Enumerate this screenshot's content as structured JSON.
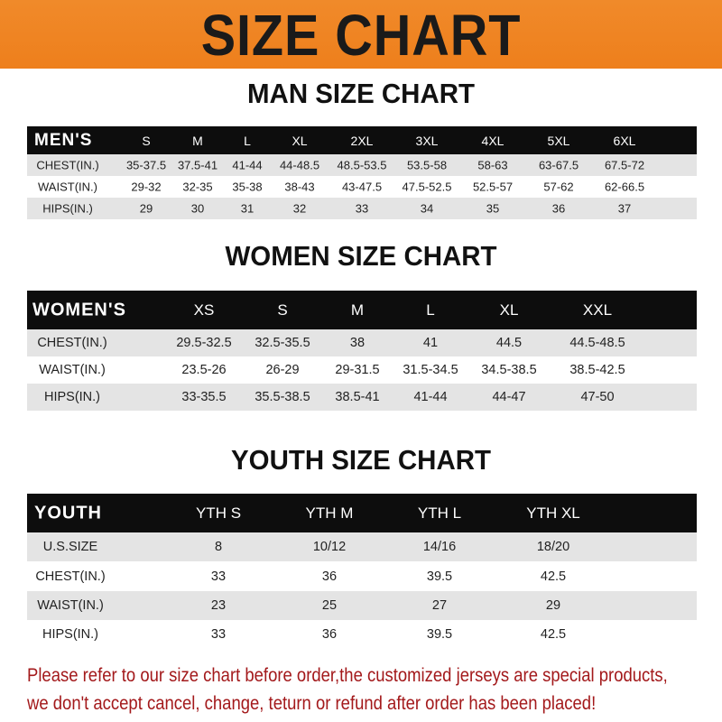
{
  "banner": {
    "title": "SIZE CHART",
    "color": "#ee7f1c"
  },
  "men": {
    "title": "MAN SIZE CHART",
    "header": [
      "MEN'S",
      "S",
      "M",
      "L",
      "XL",
      "2XL",
      "3XL",
      "4XL",
      "5XL",
      "6XL"
    ],
    "rows": [
      [
        "CHEST(IN.)",
        "35-37.5",
        "37.5-41",
        "41-44",
        "44-48.5",
        "48.5-53.5",
        "53.5-58",
        "58-63",
        "63-67.5",
        "67.5-72"
      ],
      [
        "WAIST(IN.)",
        "29-32",
        "32-35",
        "35-38",
        "38-43",
        "43-47.5",
        "47.5-52.5",
        "52.5-57",
        "57-62",
        "62-66.5"
      ],
      [
        "HIPS(IN.)",
        "29",
        "30",
        "31",
        "32",
        "33",
        "34",
        "35",
        "36",
        "37"
      ]
    ]
  },
  "women": {
    "title": "WOMEN SIZE CHART",
    "header": [
      "WOMEN'S",
      "XS",
      "S",
      "M",
      "L",
      "XL",
      "XXL"
    ],
    "rows": [
      [
        "CHEST(IN.)",
        "29.5-32.5",
        "32.5-35.5",
        "38",
        "41",
        "44.5",
        "44.5-48.5"
      ],
      [
        "WAIST(IN.)",
        "23.5-26",
        "26-29",
        "29-31.5",
        "31.5-34.5",
        "34.5-38.5",
        "38.5-42.5"
      ],
      [
        "HIPS(IN.)",
        "33-35.5",
        "35.5-38.5",
        "38.5-41",
        "41-44",
        "44-47",
        "47-50"
      ]
    ]
  },
  "youth": {
    "title": "YOUTH SIZE CHART",
    "header": [
      "YOUTH",
      "YTH S",
      "YTH M",
      "YTH L",
      "YTH XL"
    ],
    "rows": [
      [
        "U.S.SIZE",
        "8",
        "10/12",
        "14/16",
        "18/20"
      ],
      [
        "CHEST(IN.)",
        "33",
        "36",
        "39.5",
        "42.5"
      ],
      [
        "WAIST(IN.)",
        "23",
        "25",
        "27",
        "29"
      ],
      [
        "HIPS(IN.)",
        "33",
        "36",
        "39.5",
        "42.5"
      ]
    ]
  },
  "notice": {
    "line1": "Please refer to our size chart before order,the customized jerseys are special products,",
    "line2": "we don't accept cancel, change, teturn or refund after order has been placed!",
    "color": "#a3191b"
  }
}
